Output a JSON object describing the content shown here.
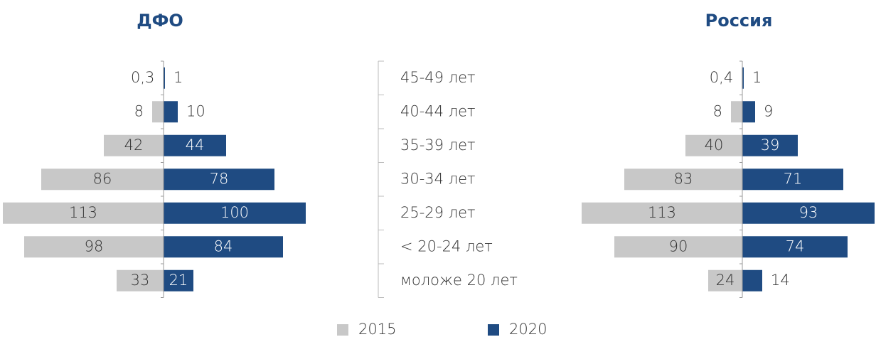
{
  "categories": [
    "45-49 лет",
    "40-44 лет",
    "35-39 лет",
    "30-34 лет",
    "25-29 лет",
    "< 20-24 лет",
    "моложе 20 лет"
  ],
  "chart_data": [
    {
      "type": "butterfly",
      "title": "ДФО",
      "series": [
        {
          "name": "2015",
          "color": "#c8c8c8",
          "values": [
            0.3,
            8,
            42,
            86,
            113,
            98,
            33
          ],
          "value_labels": [
            "0,3",
            "8",
            "42",
            "86",
            "113",
            "98",
            "33"
          ]
        },
        {
          "name": "2020",
          "color": "#1f4b82",
          "values": [
            1,
            10,
            44,
            78,
            100,
            84,
            21
          ]
        }
      ]
    },
    {
      "type": "butterfly",
      "title": "Россия",
      "series": [
        {
          "color": "#c8c8c8",
          "values": [
            0.4,
            8,
            40,
            83,
            113,
            90,
            24
          ],
          "value_labels": [
            "0,4",
            "8",
            "40",
            "83",
            "113",
            "90",
            "24"
          ]
        },
        {
          "color": "#1f4b82",
          "values": [
            1,
            9,
            39,
            71,
            93,
            74,
            14
          ]
        }
      ]
    }
  ]
}
